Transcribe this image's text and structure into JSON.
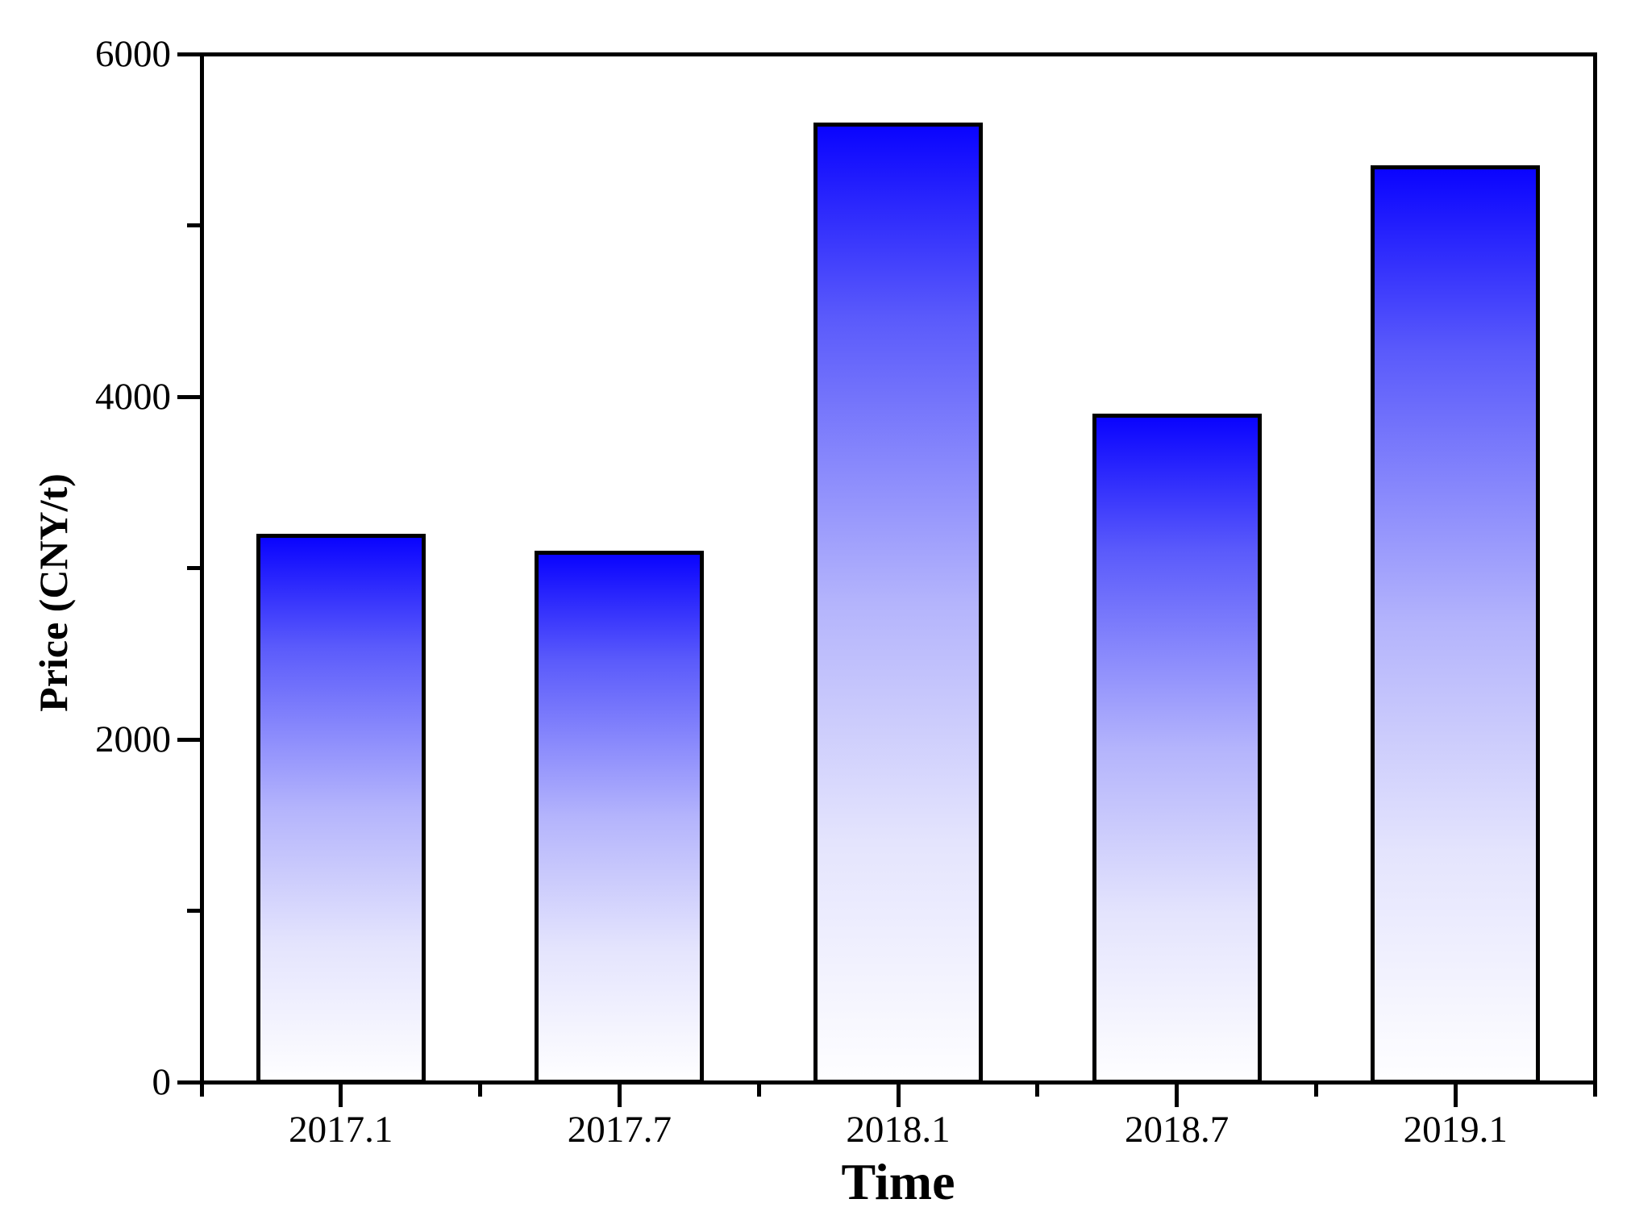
{
  "figure": {
    "background": "#ffffff",
    "axis_color": "#000000"
  },
  "chart_data": {
    "type": "bar",
    "title": "",
    "xlabel": "Time",
    "ylabel": "Price (CNY/t)",
    "categories": [
      "2017.1",
      "2017.7",
      "2018.1",
      "2018.7",
      "2019.1"
    ],
    "values": [
      3200,
      3100,
      5600,
      3900,
      5350
    ],
    "ylim": [
      0,
      6000
    ],
    "y_major_ticks": [
      0,
      2000,
      4000,
      6000
    ],
    "y_major_tick_labels": [
      "0",
      "2000",
      "4000",
      "6000"
    ],
    "y_minor_ticks": [
      1000,
      3000,
      5000
    ],
    "grid": false,
    "legend": false,
    "bar_gradient": {
      "direction": "top-to-bottom",
      "stops": [
        {
          "pos": 0,
          "color": "#0a04fe"
        },
        {
          "pos": 0.2,
          "color": "#5a5afb"
        },
        {
          "pos": 0.5,
          "color": "#b4b4fc"
        },
        {
          "pos": 0.75,
          "color": "#e4e4fd"
        },
        {
          "pos": 1,
          "color": "#fefeff"
        }
      ]
    },
    "bar_outline_color": "#000000"
  }
}
